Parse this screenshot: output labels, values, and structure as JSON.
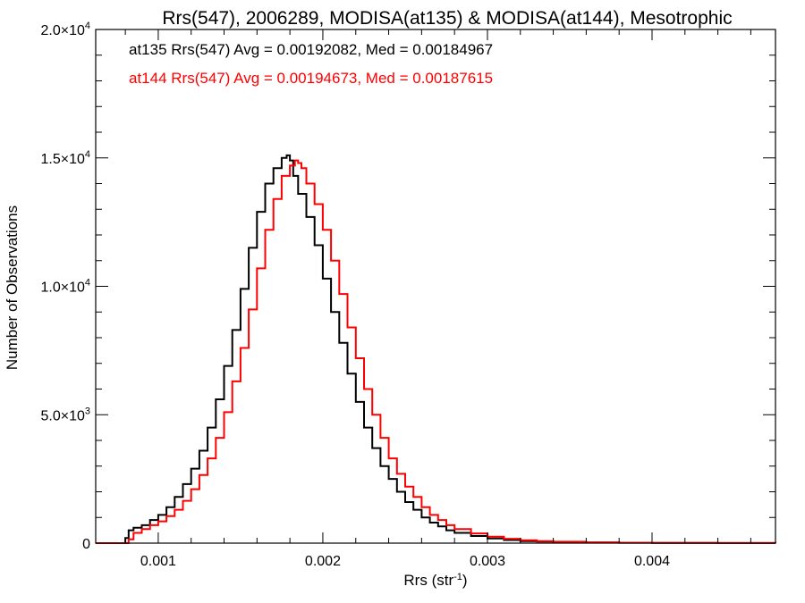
{
  "chart_data": {
    "type": "line",
    "title": "Rrs(547), 2006289, MODISA(at135) & MODISA(at144), Mesotrophic",
    "xlabel_main": "Rrs (str",
    "xlabel_sup": "-1",
    "xlabel_end": ")",
    "ylabel": "Number of Observations",
    "xlim": [
      0.00062,
      0.00475
    ],
    "ylim": [
      0,
      20000
    ],
    "x_ticks": [
      {
        "value": 0.001,
        "label": "0.001"
      },
      {
        "value": 0.002,
        "label": "0.002"
      },
      {
        "value": 0.003,
        "label": "0.003"
      },
      {
        "value": 0.004,
        "label": "0.004"
      }
    ],
    "y_ticks": [
      {
        "value": 0,
        "label": "0",
        "sup": ""
      },
      {
        "value": 5000,
        "label": "5.0×10",
        "sup": "3"
      },
      {
        "value": 10000,
        "label": "1.0×10",
        "sup": "4"
      },
      {
        "value": 15000,
        "label": "1.5×10",
        "sup": "4"
      },
      {
        "value": 20000,
        "label": "2.0×10",
        "sup": "4"
      }
    ],
    "legend": [
      {
        "text": "at135 Rrs(547) Avg = 0.00192082, Med = 0.00184967",
        "color": "#000000"
      },
      {
        "text": "at144 Rrs(547) Avg = 0.00194673, Med = 0.00187615",
        "color": "#ff0000"
      }
    ],
    "series": [
      {
        "color": "#000000",
        "x": [
          0.00062,
          0.00078,
          0.0008,
          0.00082,
          0.00085,
          0.0009,
          0.00095,
          0.001,
          0.00105,
          0.0011,
          0.00115,
          0.0012,
          0.00125,
          0.0013,
          0.00135,
          0.0014,
          0.00145,
          0.0015,
          0.00155,
          0.0016,
          0.00165,
          0.0017,
          0.00175,
          0.00178,
          0.0018,
          0.00182,
          0.00185,
          0.0019,
          0.00195,
          0.002,
          0.00205,
          0.0021,
          0.00215,
          0.0022,
          0.00225,
          0.0023,
          0.00235,
          0.0024,
          0.00245,
          0.0025,
          0.00255,
          0.0026,
          0.00265,
          0.0027,
          0.00275,
          0.0028,
          0.0029,
          0.003,
          0.0031,
          0.0032,
          0.0033,
          0.0034,
          0.0036,
          0.0038,
          0.004,
          0.0042,
          0.0044,
          0.0046,
          0.00475
        ],
        "y": [
          0,
          0,
          200,
          500,
          600,
          700,
          900,
          1100,
          1400,
          1800,
          2300,
          2900,
          3600,
          4500,
          5600,
          6900,
          8300,
          9900,
          11500,
          12900,
          14000,
          14600,
          15000,
          15100,
          14900,
          14300,
          13600,
          12700,
          11600,
          10300,
          9000,
          7800,
          6600,
          5500,
          4500,
          3700,
          3000,
          2500,
          2000,
          1600,
          1300,
          1000,
          800,
          650,
          500,
          400,
          280,
          180,
          120,
          80,
          60,
          40,
          25,
          15,
          10,
          6,
          3,
          2,
          0
        ]
      },
      {
        "color": "#ff0000",
        "x": [
          0.00062,
          0.0008,
          0.00082,
          0.00085,
          0.0009,
          0.00095,
          0.001,
          0.00105,
          0.0011,
          0.00115,
          0.0012,
          0.00125,
          0.0013,
          0.00135,
          0.0014,
          0.00145,
          0.0015,
          0.00155,
          0.0016,
          0.00165,
          0.0017,
          0.00175,
          0.0018,
          0.00183,
          0.00185,
          0.00187,
          0.0019,
          0.00195,
          0.002,
          0.00205,
          0.0021,
          0.00215,
          0.0022,
          0.00225,
          0.0023,
          0.00235,
          0.0024,
          0.00245,
          0.0025,
          0.00255,
          0.0026,
          0.00265,
          0.0027,
          0.00275,
          0.0028,
          0.0029,
          0.003,
          0.0031,
          0.0032,
          0.0033,
          0.0034,
          0.0036,
          0.0038,
          0.004,
          0.0042,
          0.0044,
          0.0046,
          0.00475
        ],
        "y": [
          0,
          0,
          150,
          400,
          550,
          700,
          850,
          1050,
          1300,
          1650,
          2100,
          2650,
          3300,
          4100,
          5100,
          6300,
          7600,
          9100,
          10700,
          12200,
          13400,
          14300,
          14700,
          14900,
          14800,
          14600,
          14000,
          13200,
          12200,
          11000,
          9700,
          8400,
          7200,
          6000,
          5000,
          4100,
          3300,
          2700,
          2200,
          1800,
          1400,
          1100,
          900,
          700,
          550,
          380,
          250,
          170,
          110,
          80,
          55,
          30,
          18,
          12,
          7,
          4,
          2,
          0
        ]
      }
    ]
  }
}
